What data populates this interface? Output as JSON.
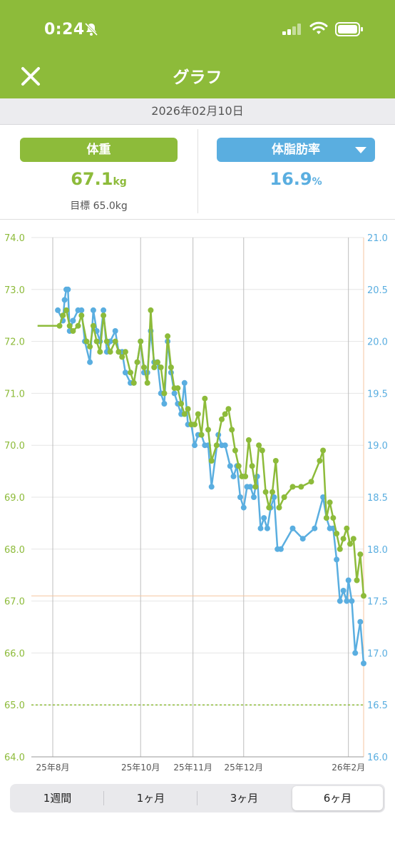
{
  "status_bar": {
    "time": "0:24"
  },
  "header": {
    "title": "グラフ"
  },
  "date": "2026年02月10日",
  "metrics": {
    "weight": {
      "label": "体重",
      "value": "67.1",
      "unit": "kg",
      "goal": "目標 65.0kg"
    },
    "body_fat": {
      "label": "体脂肪率",
      "value": "16.9",
      "unit": "%"
    }
  },
  "colors": {
    "green": "#8dbb3a",
    "blue": "#5aaee0",
    "target_line": "#f5c6a0"
  },
  "period_tabs": [
    {
      "label": "1週間",
      "active": false
    },
    {
      "label": "1ヶ月",
      "active": false
    },
    {
      "label": "3ヶ月",
      "active": false
    },
    {
      "label": "6ヶ月",
      "active": true
    }
  ],
  "chart_data": {
    "type": "line",
    "title": "",
    "x_range": [
      "2025-08-10",
      "2026-02-10"
    ],
    "x_ticks": [
      {
        "date": "2025-08-01",
        "label": "25年8月"
      },
      {
        "date": "2025-10-01",
        "label": "25年10月"
      },
      {
        "date": "2025-11-01",
        "label": "25年11月"
      },
      {
        "date": "2025-12-01",
        "label": "25年12月"
      },
      {
        "date": "2026-02-01",
        "label": "26年2月"
      }
    ],
    "y_left": {
      "min": 64.0,
      "max": 74.0,
      "step": 1.0,
      "ticks": [
        "64.0",
        "65.0",
        "66.0",
        "67.0",
        "68.0",
        "69.0",
        "70.0",
        "71.0",
        "72.0",
        "73.0",
        "74.0"
      ]
    },
    "y_right": {
      "min": 16.0,
      "max": 21.0,
      "step": 0.5,
      "ticks": [
        "16.0",
        "16.5",
        "17.0",
        "17.5",
        "18.0",
        "18.5",
        "19.0",
        "19.5",
        "20.0",
        "20.5",
        "21.0"
      ]
    },
    "grid": true,
    "goal_line": {
      "axis": "left",
      "value": 65.0,
      "style": "dashed"
    },
    "target_line": {
      "axis": "left",
      "value": 67.1
    },
    "series": [
      {
        "name": "体重",
        "axis": "left",
        "points": [
          [
            "2025-08-01",
            72.3
          ],
          [
            "2025-08-14",
            72.3
          ],
          [
            "2025-08-16",
            72.5
          ],
          [
            "2025-08-18",
            72.6
          ],
          [
            "2025-08-20",
            72.3
          ],
          [
            "2025-08-22",
            72.2
          ],
          [
            "2025-08-25",
            72.3
          ],
          [
            "2025-08-27",
            72.5
          ],
          [
            "2025-08-30",
            72.0
          ],
          [
            "2025-09-01",
            71.9
          ],
          [
            "2025-09-03",
            72.3
          ],
          [
            "2025-09-05",
            72.0
          ],
          [
            "2025-09-07",
            71.8
          ],
          [
            "2025-09-09",
            72.5
          ],
          [
            "2025-09-11",
            72.0
          ],
          [
            "2025-09-13",
            71.8
          ],
          [
            "2025-09-16",
            72.0
          ],
          [
            "2025-09-18",
            71.8
          ],
          [
            "2025-09-20",
            71.7
          ],
          [
            "2025-09-22",
            71.8
          ],
          [
            "2025-09-25",
            71.4
          ],
          [
            "2025-09-27",
            71.2
          ],
          [
            "2025-09-29",
            71.6
          ],
          [
            "2025-10-01",
            72.0
          ],
          [
            "2025-10-03",
            71.5
          ],
          [
            "2025-10-05",
            71.2
          ],
          [
            "2025-10-07",
            72.6
          ],
          [
            "2025-10-09",
            71.5
          ],
          [
            "2025-10-11",
            71.6
          ],
          [
            "2025-10-13",
            71.5
          ],
          [
            "2025-10-15",
            71.0
          ],
          [
            "2025-10-17",
            72.1
          ],
          [
            "2025-10-19",
            71.5
          ],
          [
            "2025-10-21",
            71.1
          ],
          [
            "2025-10-23",
            71.1
          ],
          [
            "2025-10-25",
            70.8
          ],
          [
            "2025-10-27",
            70.6
          ],
          [
            "2025-10-29",
            70.7
          ],
          [
            "2025-10-31",
            70.4
          ],
          [
            "2025-11-02",
            70.4
          ],
          [
            "2025-11-04",
            70.6
          ],
          [
            "2025-11-06",
            70.2
          ],
          [
            "2025-11-08",
            70.9
          ],
          [
            "2025-11-10",
            70.3
          ],
          [
            "2025-11-12",
            69.7
          ],
          [
            "2025-11-15",
            70.0
          ],
          [
            "2025-11-18",
            70.5
          ],
          [
            "2025-11-20",
            70.6
          ],
          [
            "2025-11-22",
            70.7
          ],
          [
            "2025-11-24",
            70.3
          ],
          [
            "2025-11-26",
            69.9
          ],
          [
            "2025-11-28",
            69.6
          ],
          [
            "2025-11-30",
            69.4
          ],
          [
            "2025-12-02",
            69.4
          ],
          [
            "2025-12-04",
            70.1
          ],
          [
            "2025-12-06",
            69.6
          ],
          [
            "2025-12-08",
            69.2
          ],
          [
            "2025-12-10",
            70.0
          ],
          [
            "2025-12-12",
            69.9
          ],
          [
            "2025-12-14",
            69.1
          ],
          [
            "2025-12-16",
            68.8
          ],
          [
            "2025-12-18",
            69.1
          ],
          [
            "2025-12-20",
            69.7
          ],
          [
            "2025-12-22",
            68.8
          ],
          [
            "2025-12-25",
            69.0
          ],
          [
            "2025-12-30",
            69.2
          ],
          [
            "2026-01-04",
            69.2
          ],
          [
            "2026-01-10",
            69.3
          ],
          [
            "2026-01-15",
            69.7
          ],
          [
            "2026-01-17",
            69.9
          ],
          [
            "2026-01-19",
            68.6
          ],
          [
            "2026-01-21",
            68.9
          ],
          [
            "2026-01-23",
            68.6
          ],
          [
            "2026-01-25",
            68.3
          ],
          [
            "2026-01-27",
            68.0
          ],
          [
            "2026-01-29",
            68.2
          ],
          [
            "2026-01-31",
            68.4
          ],
          [
            "2026-02-02",
            68.1
          ],
          [
            "2026-02-04",
            68.2
          ],
          [
            "2026-02-06",
            67.4
          ],
          [
            "2026-02-08",
            67.9
          ],
          [
            "2026-02-10",
            67.1
          ]
        ]
      },
      {
        "name": "体脂肪率",
        "axis": "right",
        "points": [
          [
            "2025-08-13",
            20.3
          ],
          [
            "2025-08-16",
            20.2
          ],
          [
            "2025-08-17",
            20.4
          ],
          [
            "2025-08-18",
            20.5
          ],
          [
            "2025-08-19",
            20.5
          ],
          [
            "2025-08-20",
            20.1
          ],
          [
            "2025-08-22",
            20.2
          ],
          [
            "2025-08-25",
            20.3
          ],
          [
            "2025-08-27",
            20.3
          ],
          [
            "2025-08-29",
            20.0
          ],
          [
            "2025-09-01",
            19.8
          ],
          [
            "2025-09-03",
            20.3
          ],
          [
            "2025-09-05",
            20.1
          ],
          [
            "2025-09-07",
            20.0
          ],
          [
            "2025-09-09",
            20.3
          ],
          [
            "2025-09-11",
            19.9
          ],
          [
            "2025-09-13",
            20.0
          ],
          [
            "2025-09-16",
            20.1
          ],
          [
            "2025-09-18",
            19.9
          ],
          [
            "2025-09-20",
            19.9
          ],
          [
            "2025-09-22",
            19.7
          ],
          [
            "2025-09-25",
            19.6
          ],
          [
            "2025-09-27",
            19.6
          ],
          [
            "2025-09-29",
            19.8
          ],
          [
            "2025-10-01",
            20.0
          ],
          [
            "2025-10-03",
            19.7
          ],
          [
            "2025-10-05",
            19.7
          ],
          [
            "2025-10-07",
            20.1
          ],
          [
            "2025-10-09",
            19.8
          ],
          [
            "2025-10-11",
            19.8
          ],
          [
            "2025-10-13",
            19.5
          ],
          [
            "2025-10-15",
            19.4
          ],
          [
            "2025-10-17",
            20.0
          ],
          [
            "2025-10-19",
            19.7
          ],
          [
            "2025-10-21",
            19.5
          ],
          [
            "2025-10-23",
            19.4
          ],
          [
            "2025-10-25",
            19.3
          ],
          [
            "2025-10-27",
            19.6
          ],
          [
            "2025-10-29",
            19.2
          ],
          [
            "2025-10-31",
            19.2
          ],
          [
            "2025-11-02",
            19.0
          ],
          [
            "2025-11-04",
            19.1
          ],
          [
            "2025-11-06",
            19.1
          ],
          [
            "2025-11-08",
            19.0
          ],
          [
            "2025-11-10",
            19.0
          ],
          [
            "2025-11-12",
            18.6
          ],
          [
            "2025-11-16",
            19.1
          ],
          [
            "2025-11-18",
            19.0
          ],
          [
            "2025-11-20",
            19.0
          ],
          [
            "2025-11-23",
            18.8
          ],
          [
            "2025-11-25",
            18.7
          ],
          [
            "2025-11-27",
            18.8
          ],
          [
            "2025-11-29",
            18.5
          ],
          [
            "2025-12-01",
            18.4
          ],
          [
            "2025-12-03",
            18.6
          ],
          [
            "2025-12-05",
            18.6
          ],
          [
            "2025-12-07",
            18.5
          ],
          [
            "2025-12-09",
            18.7
          ],
          [
            "2025-12-11",
            18.2
          ],
          [
            "2025-12-13",
            18.3
          ],
          [
            "2025-12-15",
            18.2
          ],
          [
            "2025-12-17",
            18.4
          ],
          [
            "2025-12-19",
            18.5
          ],
          [
            "2025-12-21",
            18.0
          ],
          [
            "2025-12-23",
            18.0
          ],
          [
            "2025-12-30",
            18.2
          ],
          [
            "2026-01-05",
            18.1
          ],
          [
            "2026-01-12",
            18.2
          ],
          [
            "2026-01-17",
            18.5
          ],
          [
            "2026-01-19",
            18.3
          ],
          [
            "2026-01-21",
            18.2
          ],
          [
            "2026-01-23",
            18.2
          ],
          [
            "2026-01-25",
            17.9
          ],
          [
            "2026-01-27",
            17.5
          ],
          [
            "2026-01-29",
            17.6
          ],
          [
            "2026-01-31",
            17.5
          ],
          [
            "2026-02-01",
            17.7
          ],
          [
            "2026-02-03",
            17.5
          ],
          [
            "2026-02-05",
            17.0
          ],
          [
            "2026-02-08",
            17.3
          ],
          [
            "2026-02-10",
            16.9
          ]
        ]
      }
    ]
  }
}
